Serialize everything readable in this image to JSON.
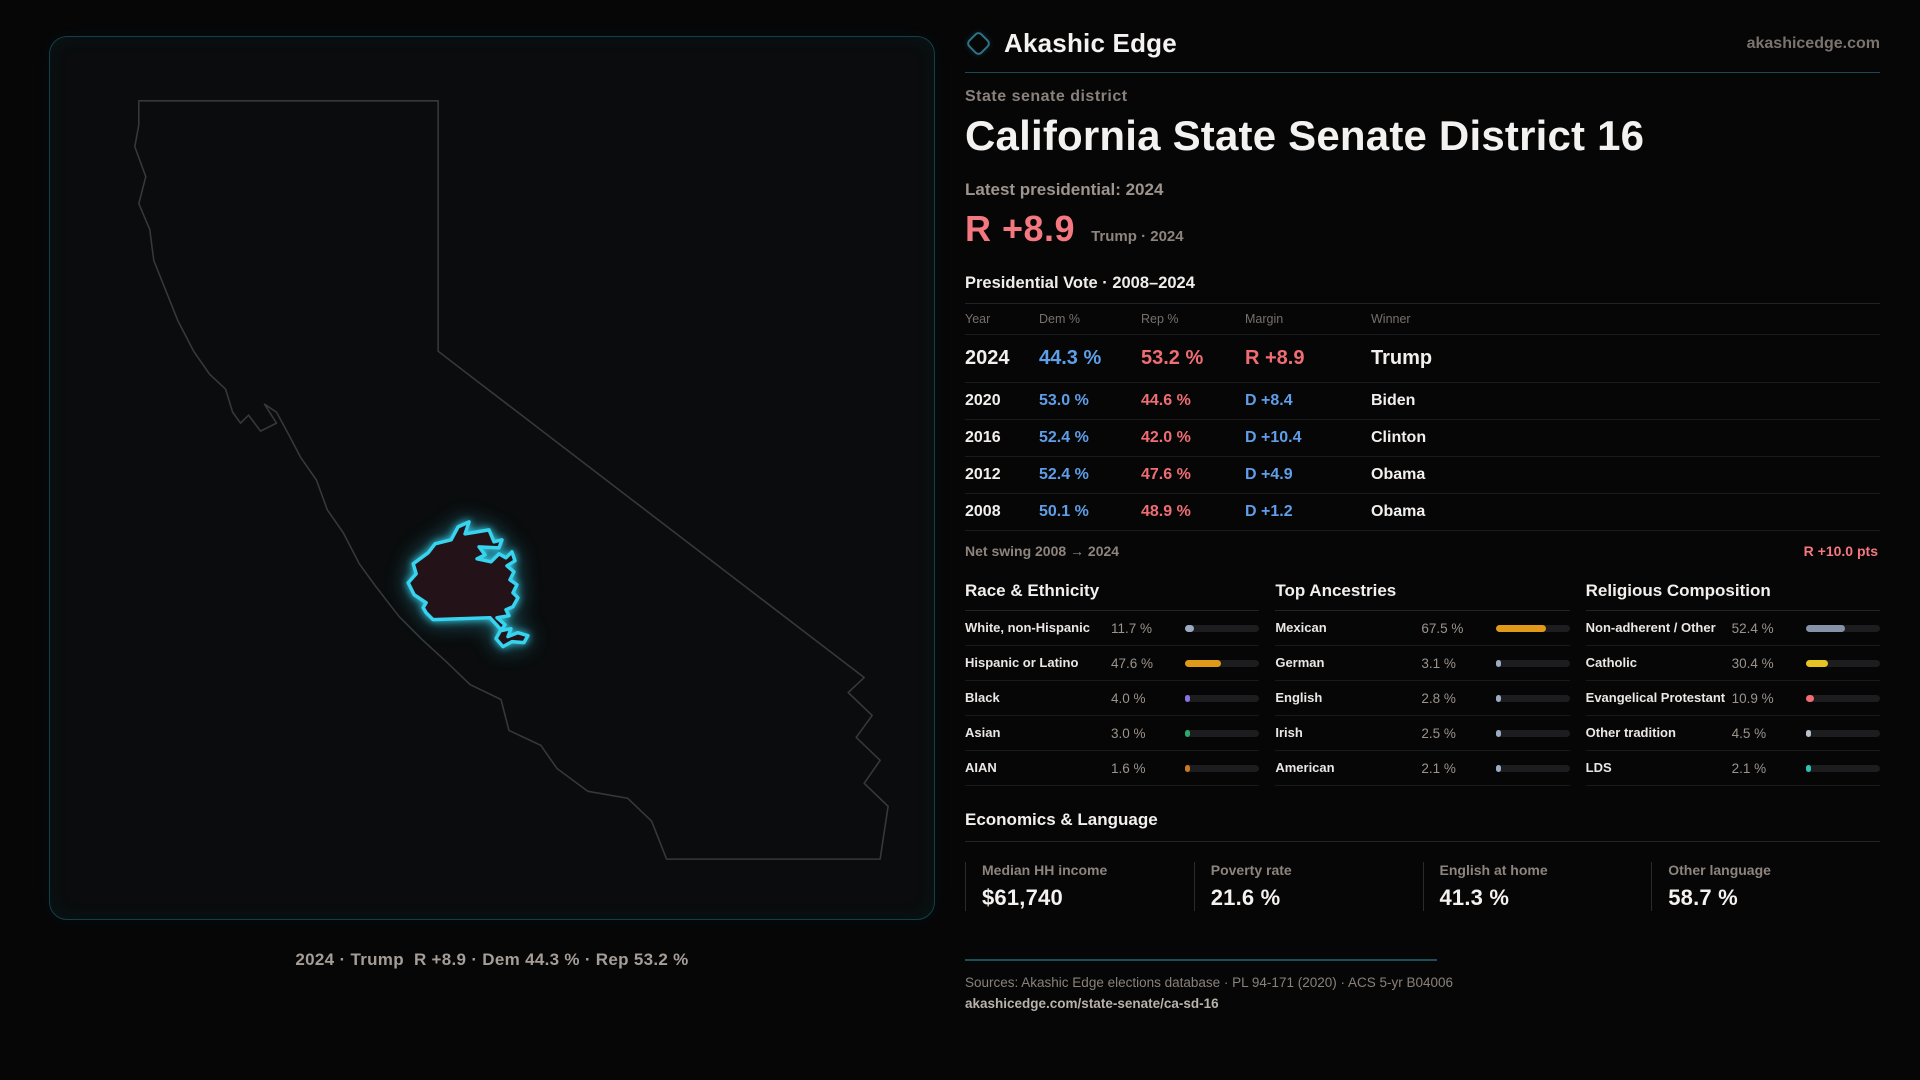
{
  "brand": {
    "name": "Akashic Edge",
    "domain": "akashicedge.com"
  },
  "page": {
    "eyebrow": "State senate district",
    "title": "California State Senate District 16",
    "latest_label": "Latest presidential: 2024",
    "headline_margin": "R +8.9",
    "headline_context": "Trump · 2024",
    "table_title": "Presidential Vote · 2008–2024"
  },
  "colors": {
    "dem": "#5f9ee8",
    "rep": "#ef6d73",
    "accent_red": "#f4787f",
    "district_cyan": "#38d3ee"
  },
  "map": {
    "region": "California",
    "caption": "2024 · Trump  R +8.9 · Dem 44.3 % · Rep 53.2 %"
  },
  "election_table": {
    "columns": [
      "Year",
      "Dem %",
      "Rep %",
      "Margin",
      "Winner"
    ],
    "rows": [
      {
        "year": "2024",
        "dem": "44.3 %",
        "rep": "53.2 %",
        "margin": "R +8.9",
        "margin_party": "R",
        "winner": "Trump",
        "highlight": true
      },
      {
        "year": "2020",
        "dem": "53.0 %",
        "rep": "44.6 %",
        "margin": "D +8.4",
        "margin_party": "D",
        "winner": "Biden",
        "highlight": false
      },
      {
        "year": "2016",
        "dem": "52.4 %",
        "rep": "42.0 %",
        "margin": "D +10.4",
        "margin_party": "D",
        "winner": "Clinton",
        "highlight": false
      },
      {
        "year": "2012",
        "dem": "52.4 %",
        "rep": "47.6 %",
        "margin": "D +4.9",
        "margin_party": "D",
        "winner": "Obama",
        "highlight": false
      },
      {
        "year": "2008",
        "dem": "50.1 %",
        "rep": "48.9 %",
        "margin": "D +1.2",
        "margin_party": "D",
        "winner": "Obama",
        "highlight": false
      }
    ]
  },
  "net_swing": {
    "label": "Net swing 2008 → 2024",
    "value": "R +10.0 pts"
  },
  "demographics": [
    {
      "title": "Race & Ethnicity",
      "rows": [
        {
          "label": "White, non-Hispanic",
          "value": "11.7 %",
          "pct": 11.7,
          "color": "#9aabc2"
        },
        {
          "label": "Hispanic or Latino",
          "value": "47.6 %",
          "pct": 47.6,
          "color": "#e09a18"
        },
        {
          "label": "Black",
          "value": "4.0 %",
          "pct": 4.0,
          "color": "#8b72e0"
        },
        {
          "label": "Asian",
          "value": "3.0 %",
          "pct": 3.0,
          "color": "#2ba86c"
        },
        {
          "label": "AIAN",
          "value": "1.6 %",
          "pct": 1.6,
          "color": "#c77822"
        }
      ]
    },
    {
      "title": "Top Ancestries",
      "rows": [
        {
          "label": "Mexican",
          "value": "67.5 %",
          "pct": 67.5,
          "color": "#e09a18"
        },
        {
          "label": "German",
          "value": "3.1 %",
          "pct": 3.1,
          "color": "#9aabc2"
        },
        {
          "label": "English",
          "value": "2.8 %",
          "pct": 2.8,
          "color": "#9aabc2"
        },
        {
          "label": "Irish",
          "value": "2.5 %",
          "pct": 2.5,
          "color": "#9aabc2"
        },
        {
          "label": "American",
          "value": "2.1 %",
          "pct": 2.1,
          "color": "#9aabc2"
        }
      ]
    },
    {
      "title": "Religious Composition",
      "rows": [
        {
          "label": "Non-adherent / Other",
          "value": "52.4 %",
          "pct": 52.4,
          "color": "#8593a8"
        },
        {
          "label": "Catholic",
          "value": "30.4 %",
          "pct": 30.4,
          "color": "#e6c422"
        },
        {
          "label": "Evangelical Protestant",
          "value": "10.9 %",
          "pct": 10.9,
          "color": "#ef6d73"
        },
        {
          "label": "Other tradition",
          "value": "4.5 %",
          "pct": 4.5,
          "color": "#b9c2cc"
        },
        {
          "label": "LDS",
          "value": "2.1 %",
          "pct": 2.1,
          "color": "#2bc4b2"
        }
      ]
    }
  ],
  "economics": {
    "title": "Economics & Language",
    "stats": [
      {
        "label": "Median HH income",
        "value": "$61,740"
      },
      {
        "label": "Poverty rate",
        "value": "21.6 %"
      },
      {
        "label": "English at home",
        "value": "41.3 %"
      },
      {
        "label": "Other language",
        "value": "58.7 %"
      }
    ]
  },
  "footer": {
    "sources": "Sources: Akashic Edge elections database · PL 94-171 (2020) · ACS 5-yr B04006",
    "permalink": "akashicedge.com/state-senate/ca-sd-16"
  }
}
